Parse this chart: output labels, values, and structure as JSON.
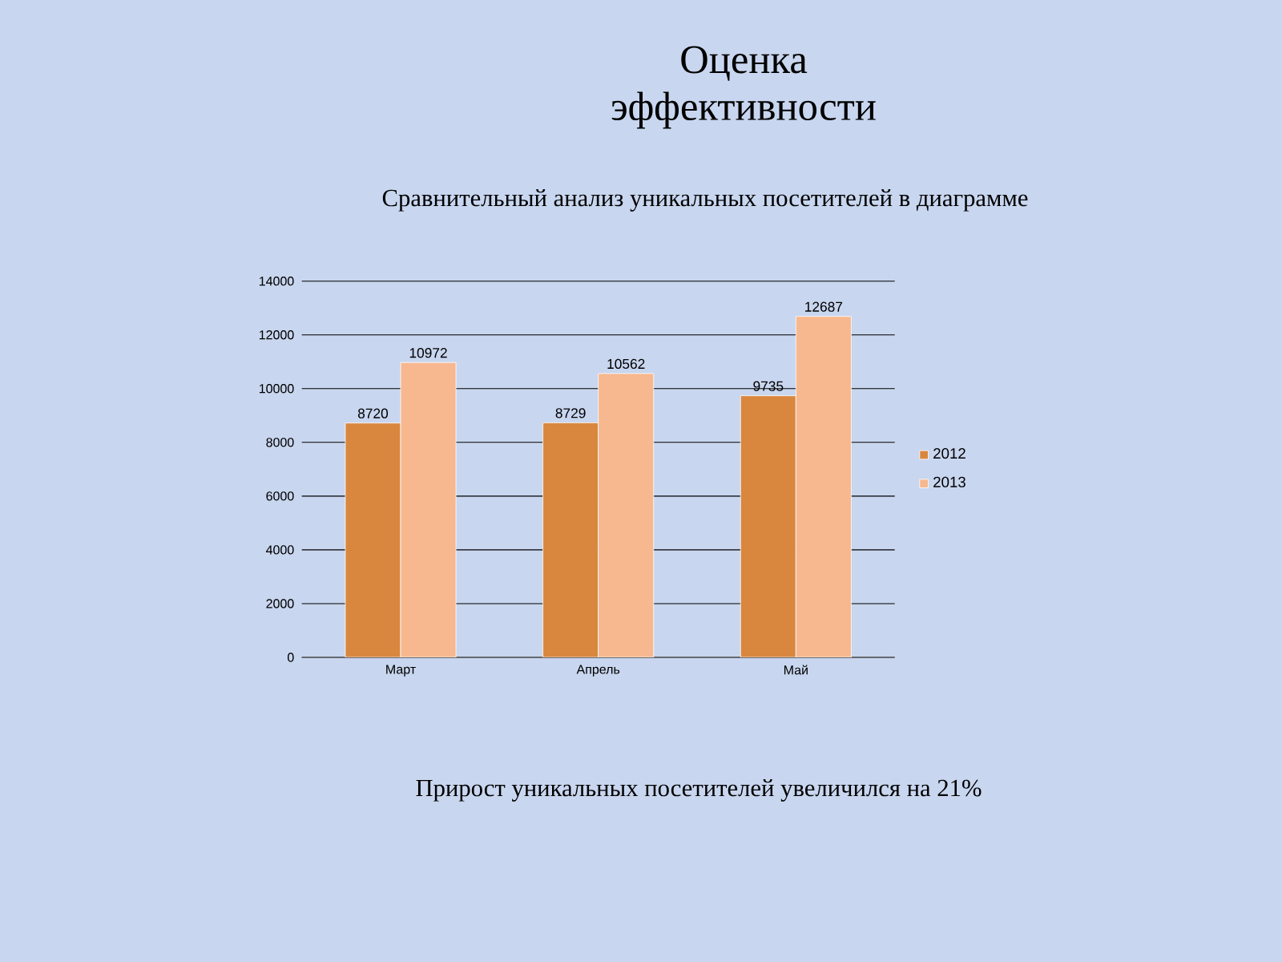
{
  "chart_data": {
    "type": "bar",
    "title": "Оценка эффективности",
    "subtitle": "Сравнительный анализ уникальных посетителей в диаграмме",
    "categories": [
      "Март",
      "Апрель",
      "Май"
    ],
    "series": [
      {
        "name": "2012",
        "color": "#d9873f",
        "values": [
          8720,
          8729,
          9735
        ]
      },
      {
        "name": "2013",
        "color": "#f7b88f",
        "values": [
          10972,
          10562,
          12687
        ]
      }
    ],
    "ylim": [
      0,
      14000
    ],
    "yticks": [
      0,
      2000,
      4000,
      6000,
      8000,
      10000,
      12000,
      14000
    ],
    "grid": "y",
    "legend": "right",
    "data_labels": true,
    "annotations": [
      "Прирост уникальных посетителей увеличился на 21%"
    ]
  }
}
